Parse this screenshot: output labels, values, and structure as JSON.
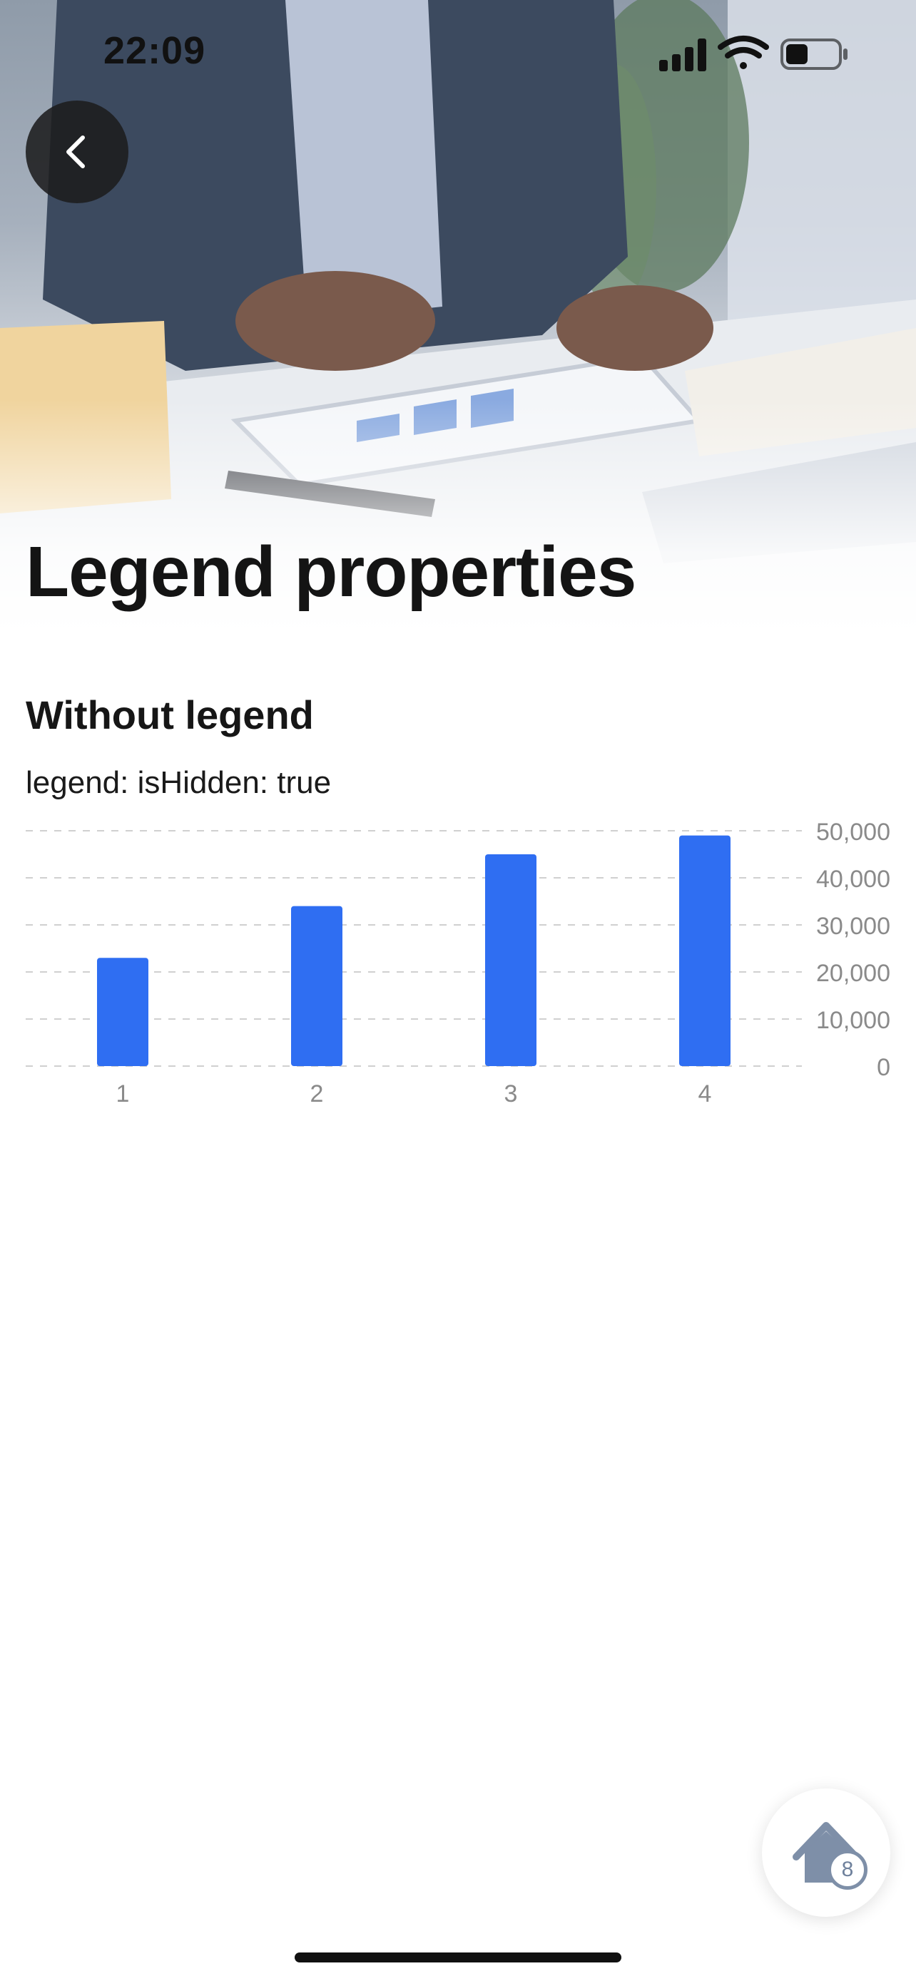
{
  "status_bar": {
    "time": "22:09",
    "icons": [
      "signal-icon",
      "wifi-icon",
      "battery-icon"
    ]
  },
  "header": {
    "back_icon": "chevron-left-icon",
    "title": "Legend properties"
  },
  "section": {
    "title": "Without legend",
    "description": "legend: isHidden: true"
  },
  "chart_data": {
    "type": "bar",
    "categories": [
      "1",
      "2",
      "3",
      "4"
    ],
    "values": [
      23000,
      34000,
      45000,
      49000
    ],
    "title": "",
    "xlabel": "",
    "ylabel": "",
    "ylim": [
      0,
      50000
    ],
    "yticks": [
      "0",
      "10,000",
      "20,000",
      "30,000",
      "40,000",
      "50,000"
    ],
    "y_axis_side": "right",
    "grid": true,
    "legend": "hidden",
    "color": "#2f6ef2"
  },
  "home_button": {
    "icon": "home-icon",
    "badge": "8"
  },
  "colors": {
    "accent": "#2f6ef2",
    "back_button": "#1c1c1e",
    "grid": "#d0d0d0",
    "tick_label": "#8a8a8a"
  }
}
